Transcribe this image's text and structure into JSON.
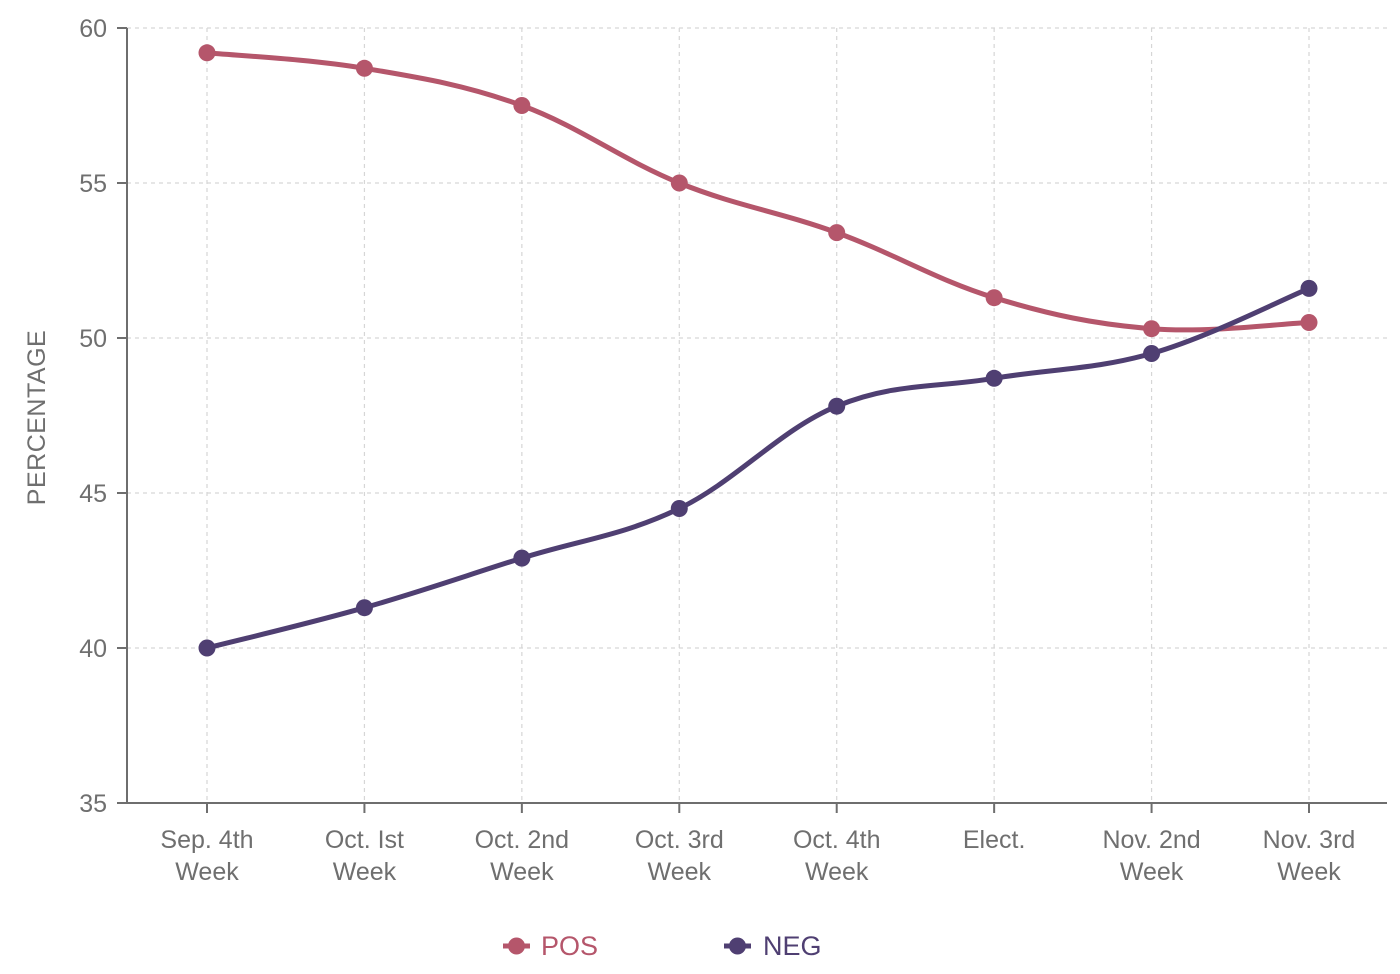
{
  "chart_data": {
    "type": "line",
    "title": "",
    "xlabel": "",
    "ylabel": "PERCENTAGE",
    "ylim": [
      35,
      60
    ],
    "yticks": [
      35,
      40,
      45,
      50,
      55,
      60
    ],
    "grid": true,
    "legend_position": "bottom",
    "categories": [
      [
        "Sep. 4th",
        "Week"
      ],
      [
        "Oct. Ist",
        "Week"
      ],
      [
        "Oct. 2nd",
        "Week"
      ],
      [
        "Oct. 3rd",
        "Week"
      ],
      [
        "Oct. 4th",
        "Week"
      ],
      [
        "Elect."
      ],
      [
        "Nov. 2nd",
        "Week"
      ],
      [
        "Nov. 3rd",
        "Week"
      ]
    ],
    "series": [
      {
        "name": "POS",
        "color": "#b5566b",
        "values": [
          59.2,
          58.7,
          57.5,
          55.0,
          53.4,
          51.3,
          50.3,
          50.5
        ]
      },
      {
        "name": "NEG",
        "color": "#4f3f72",
        "values": [
          40.0,
          41.3,
          42.9,
          44.5,
          47.8,
          48.7,
          49.5,
          51.6
        ]
      }
    ]
  }
}
